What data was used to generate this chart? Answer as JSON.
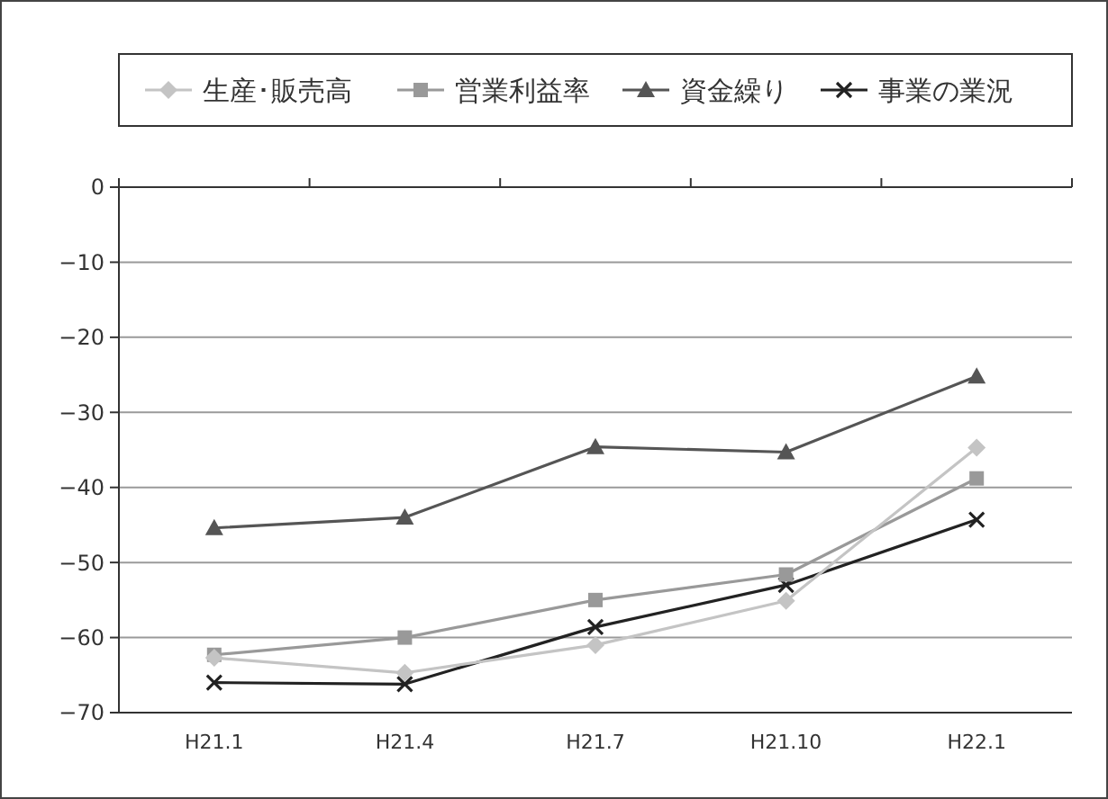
{
  "chart_data": {
    "type": "line",
    "categories": [
      "H21.1",
      "H21.4",
      "H21.7",
      "H21.10",
      "H22.1"
    ],
    "series": [
      {
        "name": "生産･販売高",
        "color": "#c4c4c4",
        "marker": "diamond",
        "values": [
          -62.7,
          -64.7,
          -61,
          -55.1,
          -34.7
        ]
      },
      {
        "name": "営業利益率",
        "color": "#999999",
        "marker": "square",
        "values": [
          -62.3,
          -60,
          -55,
          -51.6,
          -38.8
        ]
      },
      {
        "name": "資金繰り",
        "color": "#555555",
        "marker": "triangle",
        "values": [
          -45.4,
          -44,
          -34.6,
          -35.3,
          -25.2
        ]
      },
      {
        "name": "事業の業況",
        "color": "#222222",
        "marker": "cross",
        "values": [
          -66,
          -66.2,
          -58.6,
          -53,
          -44.3
        ]
      }
    ],
    "ylim": [
      -70,
      0
    ],
    "yticks": [
      {
        "value": 0,
        "label": "0"
      },
      {
        "value": -10,
        "label": "−10"
      },
      {
        "value": -20,
        "label": "−20"
      },
      {
        "value": -30,
        "label": "−30"
      },
      {
        "value": -40,
        "label": "−40"
      },
      {
        "value": -50,
        "label": "−50"
      },
      {
        "value": -60,
        "label": "−60"
      },
      {
        "value": -70,
        "label": "−70"
      }
    ],
    "grid": "y",
    "legend": "top"
  }
}
